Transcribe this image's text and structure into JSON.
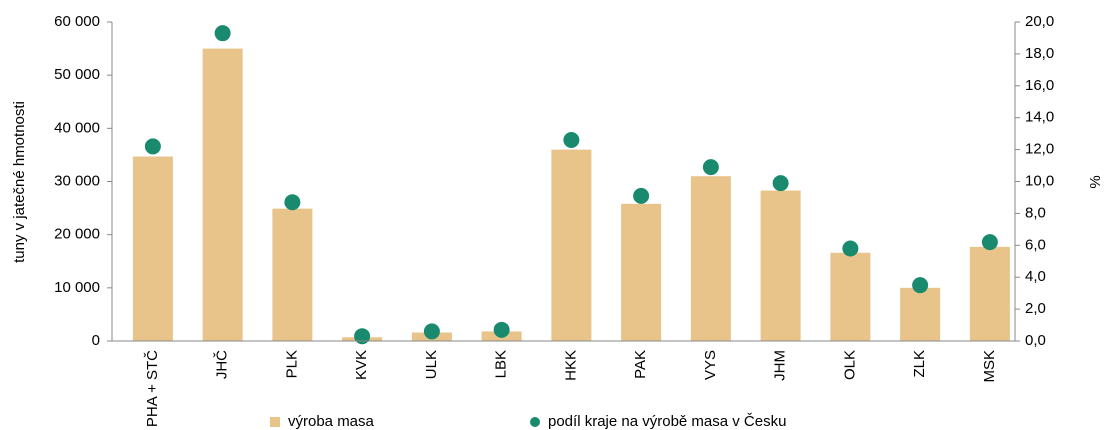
{
  "chart_data": {
    "type": "bar",
    "categories": [
      "PHA + STČ",
      "JHČ",
      "PLK",
      "KVK",
      "ULK",
      "LBK",
      "HKK",
      "PAK",
      "VYS",
      "JHM",
      "OLK",
      "ZLK",
      "MSK"
    ],
    "ylabel": "tuny v jatečné hmotnosti",
    "y2label": "%",
    "series": [
      {
        "name": "výroba masa",
        "color": "#e8c48a",
        "type": "bar",
        "values": [
          34700,
          55000,
          24900,
          700,
          1600,
          1800,
          36000,
          25800,
          31000,
          28300,
          16600,
          10000,
          17700
        ]
      },
      {
        "name": "podíl kraje na výrobě masa v Česku",
        "color": "#1a8a6e",
        "type": "scatter",
        "axis": "y2",
        "values": [
          12.2,
          19.3,
          8.7,
          0.3,
          0.6,
          0.7,
          12.6,
          9.1,
          10.9,
          9.9,
          5.8,
          3.5,
          6.2
        ]
      }
    ],
    "ylim": [
      0,
      60000
    ],
    "yticks": [
      0,
      {
        "value": 10000,
        "label": "10 000"
      },
      {
        "value": 20000,
        "label": "20 000"
      },
      {
        "value": 30000,
        "label": "30 000"
      },
      {
        "value": 40000,
        "label": "40 000"
      },
      {
        "value": 50000,
        "label": "50 000"
      },
      {
        "value": 60000,
        "label": "60 000"
      }
    ],
    "y2lim": [
      0,
      20
    ],
    "y2ticks": [
      {
        "value": 0,
        "label": "0,0"
      },
      {
        "value": 2,
        "label": "2,0"
      },
      {
        "value": 4,
        "label": "4,0"
      },
      {
        "value": 6,
        "label": "6,0"
      },
      {
        "value": 8,
        "label": "8,0"
      },
      {
        "value": 10,
        "label": "10,0"
      },
      {
        "value": 12,
        "label": "12,0"
      },
      {
        "value": 14,
        "label": "14,0"
      },
      {
        "value": 16,
        "label": "16,0"
      },
      {
        "value": 18,
        "label": "18,0"
      },
      {
        "value": 20,
        "label": "20,0"
      }
    ],
    "grid": false,
    "legend": "bottom"
  }
}
